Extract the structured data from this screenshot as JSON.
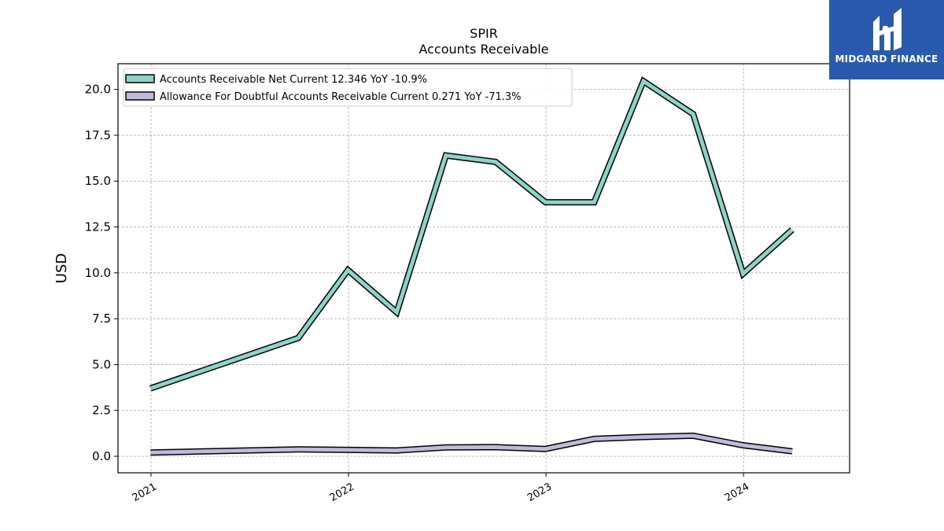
{
  "chart_data": {
    "type": "line",
    "title": "SPIR",
    "subtitle": "Accounts Receivable",
    "ylabel": "USD",
    "xlabel": "",
    "ylim": [
      -0.9,
      21.4
    ],
    "xlim": [
      "2020-11-01",
      "2024-07-15"
    ],
    "grid": true,
    "legend_position": "top-left",
    "yticks": [
      "0.0",
      "2.5",
      "5.0",
      "7.5",
      "10.0",
      "12.5",
      "15.0",
      "17.5",
      "20.0"
    ],
    "xticks": [
      "2021",
      "2022",
      "2023",
      "2024"
    ],
    "series": [
      {
        "name": "Accounts Receivable Net Current  12.346 YoY -10.9%",
        "color": "#8dd3c7",
        "x": [
          "2020-12-31",
          "2021-09-30",
          "2021-12-31",
          "2022-03-31",
          "2022-06-30",
          "2022-09-30",
          "2022-12-31",
          "2023-03-31",
          "2023-06-30",
          "2023-09-30",
          "2023-12-31",
          "2024-03-31"
        ],
        "values": [
          3.7,
          6.45,
          10.15,
          7.85,
          16.4,
          16.05,
          13.85,
          13.85,
          20.45,
          18.65,
          9.95,
          12.35
        ]
      },
      {
        "name": "Allowance For Doubtful Accounts Receivable Current  0.271 YoY -71.3%",
        "color": "#bebada",
        "x": [
          "2020-12-31",
          "2021-09-30",
          "2021-12-31",
          "2022-03-31",
          "2022-06-30",
          "2022-09-30",
          "2022-12-31",
          "2023-03-31",
          "2023-06-30",
          "2023-09-30",
          "2023-12-31",
          "2024-03-31"
        ],
        "values": [
          0.2,
          0.38,
          0.35,
          0.32,
          0.48,
          0.5,
          0.4,
          0.95,
          1.05,
          1.12,
          0.6,
          0.27
        ]
      }
    ]
  },
  "logo": {
    "text": "MIDGARD FINANCE",
    "color": "#2a5aad"
  }
}
